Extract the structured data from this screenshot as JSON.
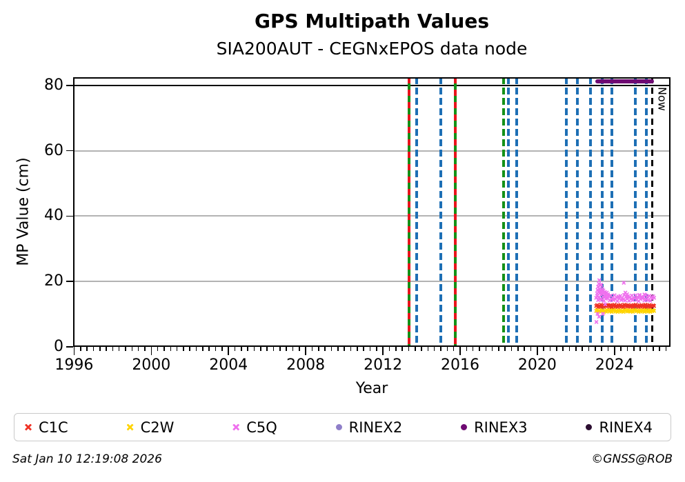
{
  "header": {
    "title": "GPS Multipath Values",
    "subtitle": "SIA200AUT - CEGNxEPOS data node"
  },
  "footer": {
    "timestamp": "Sat Jan 10 12:19:08 2026",
    "copyright": "©GNSS@ROB"
  },
  "colors": {
    "grid": "#b3b3b3",
    "blue_event": "#1d6fb5",
    "green_event": "#149117",
    "red_event": "#e9141d",
    "now_line": "#000000",
    "threshold": "#000000"
  },
  "chart_data": {
    "type": "scatter",
    "title": "GPS Multipath Values",
    "subtitle": "SIA200AUT - CEGNxEPOS data node",
    "xlabel": "Year",
    "ylabel": "MP Value (cm)",
    "xlim": [
      1995.95,
      2026.9
    ],
    "ylim": [
      0,
      82.5
    ],
    "xticks_major": [
      1996,
      2000,
      2004,
      2008,
      2012,
      2016,
      2020,
      2024
    ],
    "minor_tick_step_years": 0.33333,
    "yticks": [
      0,
      20,
      40,
      60,
      80
    ],
    "grid": "horizontal-gray",
    "legend_position": "bottom",
    "threshold_line": {
      "y": 80,
      "color": "#000000"
    },
    "now_line": {
      "year": 2025.95,
      "label": "Now",
      "style": "black-dashed"
    },
    "event_lines": [
      {
        "year": 2013.36,
        "type": "red-green"
      },
      {
        "year": 2013.76,
        "type": "blue"
      },
      {
        "year": 2015.01,
        "type": "blue"
      },
      {
        "year": 2015.75,
        "type": "red-green"
      },
      {
        "year": 2018.25,
        "type": "green"
      },
      {
        "year": 2018.5,
        "type": "blue"
      },
      {
        "year": 2018.93,
        "type": "blue"
      },
      {
        "year": 2021.5,
        "type": "blue"
      },
      {
        "year": 2022.07,
        "type": "blue"
      },
      {
        "year": 2022.75,
        "type": "blue"
      },
      {
        "year": 2023.35,
        "type": "blue"
      },
      {
        "year": 2023.88,
        "type": "blue"
      },
      {
        "year": 2025.07,
        "type": "blue"
      },
      {
        "year": 2025.64,
        "type": "blue"
      }
    ],
    "series": [
      {
        "name": "C2W",
        "marker": "x",
        "color": "#ffd400",
        "x0": 2023.05,
        "dx": 0.05,
        "y": [
          11.0,
          11.3,
          10.7,
          11.1,
          10.8,
          11.4,
          10.9,
          11.2,
          10.6,
          11.0,
          10.8,
          11.3,
          11.1,
          11.2,
          10.8,
          11.3,
          10.7,
          11.2,
          11.0,
          11.4,
          10.8,
          11.1,
          10.7,
          11.2,
          10.9,
          11.3,
          10.8,
          11.1,
          10.7,
          11.4,
          11.0,
          11.2,
          10.8,
          11.3,
          10.9,
          11.1,
          10.8,
          11.2,
          10.7,
          11.3,
          11.0,
          11.4,
          10.9,
          11.1,
          10.7,
          11.2,
          10.8,
          11.3,
          11.0,
          11.1,
          10.7,
          11.4,
          10.9,
          11.2,
          10.8,
          11.3,
          10.7,
          11.1,
          10.9,
          11.2,
          11.0
        ]
      },
      {
        "name": "C1C",
        "marker": "x",
        "color": "#ef3124",
        "x0": 2023.05,
        "dx": 0.05,
        "y": [
          12.5,
          12.8,
          12.2,
          12.6,
          12.3,
          12.9,
          12.4,
          12.7,
          12.2,
          12.6,
          12.4,
          12.8,
          12.6,
          12.7,
          12.3,
          12.8,
          12.2,
          12.7,
          12.5,
          12.9,
          12.3,
          12.6,
          12.2,
          12.7,
          12.4,
          12.8,
          12.3,
          12.6,
          12.2,
          12.9,
          12.5,
          12.7,
          12.3,
          12.8,
          12.4,
          12.6,
          12.3,
          12.7,
          12.2,
          12.8,
          12.5,
          12.9,
          12.4,
          12.6,
          12.2,
          12.7,
          12.3,
          12.8,
          12.5,
          12.6,
          12.2,
          12.9,
          12.4,
          12.7,
          12.3,
          12.8,
          12.2,
          12.6,
          12.4,
          12.7,
          12.5
        ]
      },
      {
        "name": "C5Q",
        "marker": "x",
        "color": "#ef70ee",
        "x0": 2023.05,
        "dx": 0.05,
        "y": [
          15.0,
          15.6,
          14.3,
          15.2,
          14.6,
          15.9,
          14.4,
          15.3,
          14.1,
          15.5,
          14.7,
          15.2,
          14.9,
          15.4,
          14.2,
          15.7,
          14.5,
          15.1,
          14.3,
          15.8,
          14.6,
          15.2,
          14.0,
          15.4,
          14.8,
          15.6,
          14.3,
          15.0,
          14.5,
          15.9,
          14.2,
          15.3,
          14.7,
          15.5,
          14.1,
          15.2,
          14.6,
          15.7,
          14.3,
          15.1,
          14.8,
          15.8,
          14.4,
          15.2,
          14.0,
          15.5,
          14.6,
          15.3,
          14.9,
          15.1,
          14.2,
          15.8,
          14.5,
          15.4,
          14.3,
          15.6,
          14.1,
          15.2,
          14.7,
          15.5,
          15.0
        ],
        "extra_points": [
          [
            2023.06,
            7.6
          ],
          [
            2023.12,
            10.1
          ],
          [
            2023.2,
            9.2
          ],
          [
            2023.4,
            10.1
          ],
          [
            2023.52,
            13.0
          ],
          [
            2023.1,
            16.3
          ],
          [
            2023.12,
            17.4
          ],
          [
            2023.15,
            18.4
          ],
          [
            2023.17,
            16.8
          ],
          [
            2023.19,
            19.3
          ],
          [
            2023.21,
            20.4
          ],
          [
            2023.23,
            17.7
          ],
          [
            2023.25,
            16.5
          ],
          [
            2023.27,
            18.9
          ],
          [
            2023.29,
            17.1
          ],
          [
            2023.31,
            19.0
          ],
          [
            2023.33,
            16.6
          ],
          [
            2023.36,
            17.8
          ],
          [
            2023.39,
            16.9
          ],
          [
            2023.42,
            17.3
          ],
          [
            2023.45,
            16.4
          ],
          [
            2023.5,
            16.8
          ],
          [
            2023.55,
            16.2
          ],
          [
            2023.6,
            16.6
          ],
          [
            2023.66,
            16.1
          ],
          [
            2024.48,
            19.6
          ],
          [
            2024.56,
            16.6
          ],
          [
            2024.65,
            16.1
          ],
          [
            2025.3,
            15.9
          ],
          [
            2025.55,
            16.0
          ]
        ]
      },
      {
        "name": "RINEX2",
        "marker": "circle",
        "color": "#8f7fc9",
        "points": []
      },
      {
        "name": "RINEX3",
        "marker": "circle",
        "color": "#6e0a72",
        "segment": {
          "y": 81.3,
          "x_start": 2023.01,
          "x_end": 2026.05
        }
      },
      {
        "name": "RINEX4",
        "marker": "circle",
        "color": "#2c0e31",
        "points": []
      }
    ]
  }
}
